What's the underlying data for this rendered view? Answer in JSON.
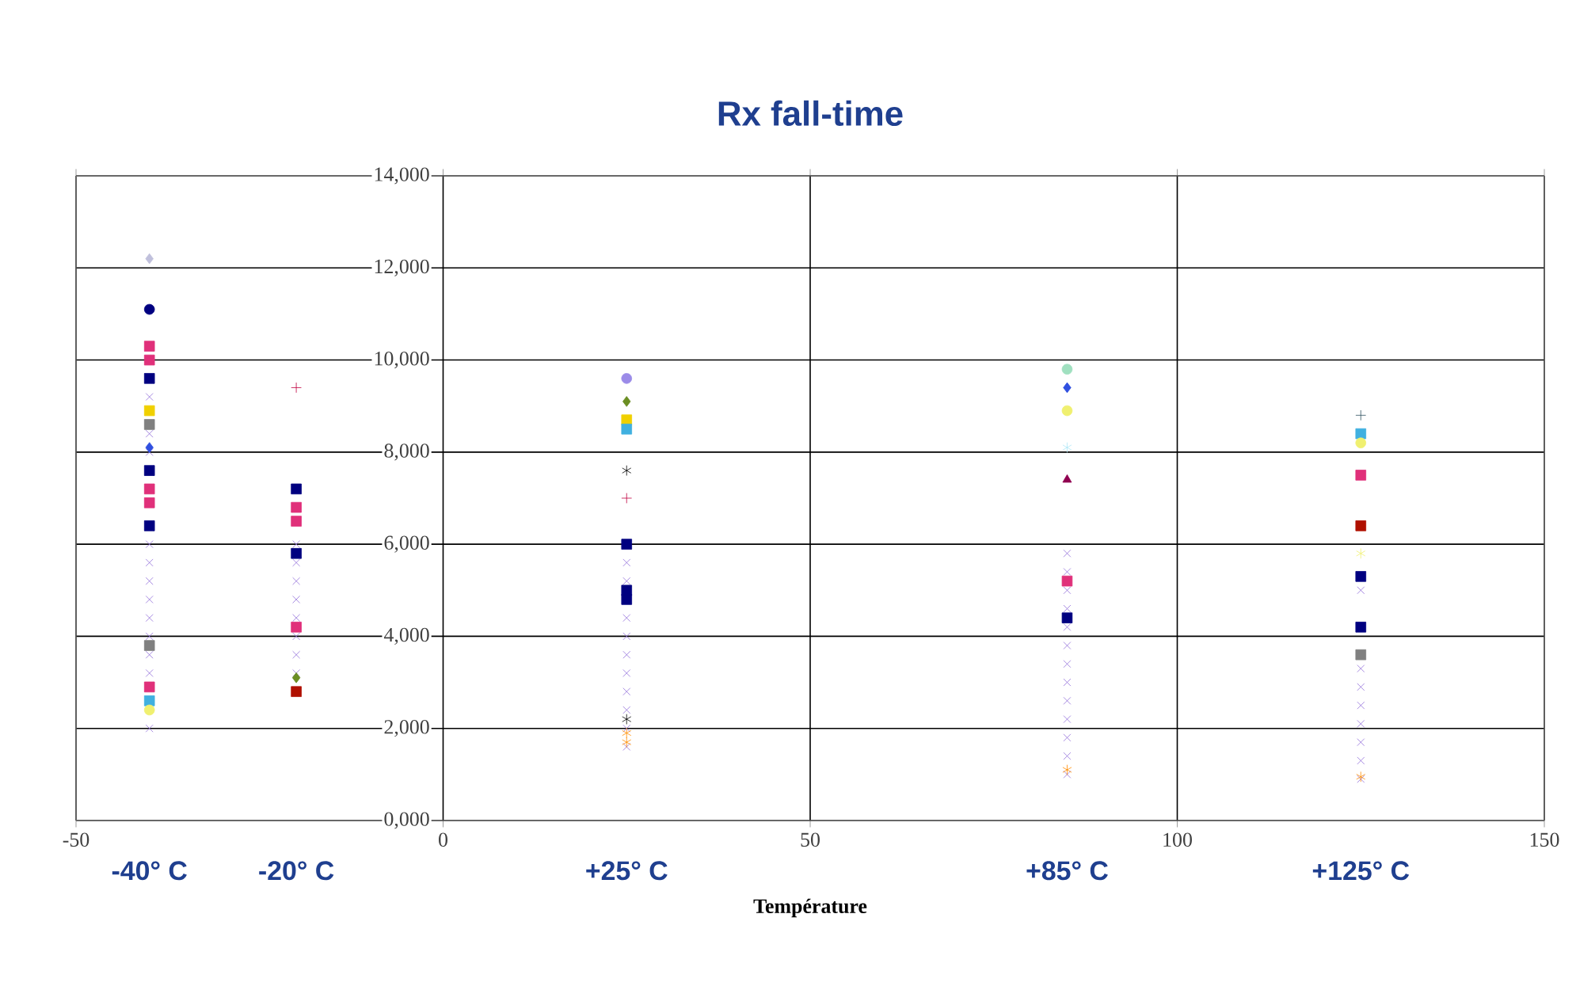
{
  "chart_data": {
    "type": "scatter",
    "title": "Rx fall-time",
    "xlabel": "Température",
    "xlim": [
      -50,
      150
    ],
    "xticks": [
      -50,
      0,
      50,
      100,
      150
    ],
    "ylim": [
      0,
      14000
    ],
    "yticks": [
      {
        "value": 0,
        "label": "0,000"
      },
      {
        "value": 2000,
        "label": "2,000"
      },
      {
        "value": 4000,
        "label": "4,000"
      },
      {
        "value": 6000,
        "label": "6,000"
      },
      {
        "value": 8000,
        "label": "8,000"
      },
      {
        "value": 10000,
        "label": "10,000"
      },
      {
        "value": 12000,
        "label": "12,000"
      },
      {
        "value": 14000,
        "label": "14,000"
      }
    ],
    "grid": true,
    "x2lim": [
      -50,
      150
    ],
    "x2ticks": [
      {
        "value": -40,
        "label": "-40° C"
      },
      {
        "value": -20,
        "label": "-20° C"
      },
      {
        "value": 25,
        "label": "+25° C"
      },
      {
        "value": 85,
        "label": "+85° C"
      },
      {
        "value": 125,
        "label": "+125° C"
      }
    ],
    "series": [
      {
        "color": "#9370db",
        "marker": "cross",
        "x": [
          -40,
          -40,
          -40,
          -40,
          -40,
          -40,
          -40,
          -40,
          -40,
          -40,
          -40,
          -40,
          -20,
          -20,
          -20,
          -20,
          -20,
          -20,
          -20,
          -20,
          25,
          25,
          25,
          25,
          25,
          25,
          25,
          25,
          25,
          25,
          85,
          85,
          85,
          85,
          85,
          85,
          85,
          85,
          85,
          85,
          85,
          85,
          85,
          125,
          125,
          125,
          125,
          125,
          125,
          125,
          125
        ],
        "values": [
          2000,
          3200,
          3600,
          4000,
          4400,
          4800,
          5200,
          5600,
          6000,
          8000,
          8400,
          9200,
          3200,
          3600,
          4000,
          4400,
          4800,
          5200,
          5600,
          6000,
          1600,
          2000,
          2400,
          2800,
          3200,
          3600,
          4000,
          4400,
          5200,
          5600,
          1000,
          1400,
          1800,
          2200,
          2600,
          3000,
          3400,
          3800,
          4200,
          4600,
          5000,
          5400,
          5800,
          900,
          1300,
          1700,
          2100,
          2500,
          2900,
          3300,
          5000
        ]
      },
      {
        "color": "#000080",
        "marker": "square",
        "x": [
          -40,
          -40,
          -40,
          -20,
          -20,
          25,
          25,
          25,
          85,
          125,
          125
        ],
        "values": [
          9600,
          7600,
          6400,
          7200,
          5800,
          6000,
          5000,
          4800,
          4400,
          5300,
          4200
        ]
      },
      {
        "color": "#e0307a",
        "marker": "square",
        "x": [
          -40,
          -40,
          -40,
          -40,
          -40,
          -20,
          -20,
          -20,
          85,
          125
        ],
        "values": [
          10300,
          10000,
          7200,
          6900,
          2900,
          6800,
          6500,
          4200,
          5200,
          7500
        ]
      },
      {
        "color": "#000080",
        "marker": "circle",
        "x": [
          -40
        ],
        "values": [
          11100
        ]
      },
      {
        "color": "#c0c0dc",
        "marker": "diamond",
        "x": [
          -40
        ],
        "values": [
          12200
        ]
      },
      {
        "color": "#c00040",
        "marker": "plus",
        "x": [
          -20,
          25
        ],
        "values": [
          9400,
          7000
        ]
      },
      {
        "color": "#9b8be8",
        "marker": "circle",
        "x": [
          25
        ],
        "values": [
          9600
        ]
      },
      {
        "color": "#6b8e23",
        "marker": "diamond",
        "x": [
          25,
          -20
        ],
        "values": [
          9100,
          3100
        ]
      },
      {
        "color": "#f0d000",
        "marker": "square",
        "x": [
          25,
          -40
        ],
        "values": [
          8700,
          8900
        ]
      },
      {
        "color": "#40b0e0",
        "marker": "square",
        "x": [
          25,
          125,
          -40
        ],
        "values": [
          8500,
          8400,
          2600
        ]
      },
      {
        "color": "#000000",
        "marker": "cross",
        "x": [
          25,
          25
        ],
        "values": [
          7600,
          2200
        ]
      },
      {
        "color": "#ff8c00",
        "marker": "cross",
        "x": [
          25,
          25,
          85,
          125
        ],
        "values": [
          1900,
          1700,
          1100,
          950
        ]
      },
      {
        "color": "#a0e0c0",
        "marker": "circle",
        "x": [
          85
        ],
        "values": [
          9800
        ]
      },
      {
        "color": "#3050e0",
        "marker": "diamond",
        "x": [
          85,
          -40
        ],
        "values": [
          9400,
          8100
        ]
      },
      {
        "color": "#f0f070",
        "marker": "circle",
        "x": [
          85,
          125,
          -40
        ],
        "values": [
          8900,
          8200,
          2400
        ]
      },
      {
        "color": "#b0e8f8",
        "marker": "cross",
        "x": [
          85
        ],
        "values": [
          8100
        ]
      },
      {
        "color": "#900050",
        "marker": "triangle",
        "x": [
          85
        ],
        "values": [
          7400
        ]
      },
      {
        "color": "#305060",
        "marker": "plus",
        "x": [
          125
        ],
        "values": [
          8800
        ]
      },
      {
        "color": "#b01000",
        "marker": "square",
        "x": [
          125,
          -20
        ],
        "values": [
          6400,
          2800
        ]
      },
      {
        "color": "#f0f070",
        "marker": "cross",
        "x": [
          125
        ],
        "values": [
          5800
        ]
      },
      {
        "color": "#808080",
        "marker": "square",
        "x": [
          125,
          -40,
          -40
        ],
        "values": [
          3600,
          8600,
          3800
        ]
      }
    ]
  }
}
